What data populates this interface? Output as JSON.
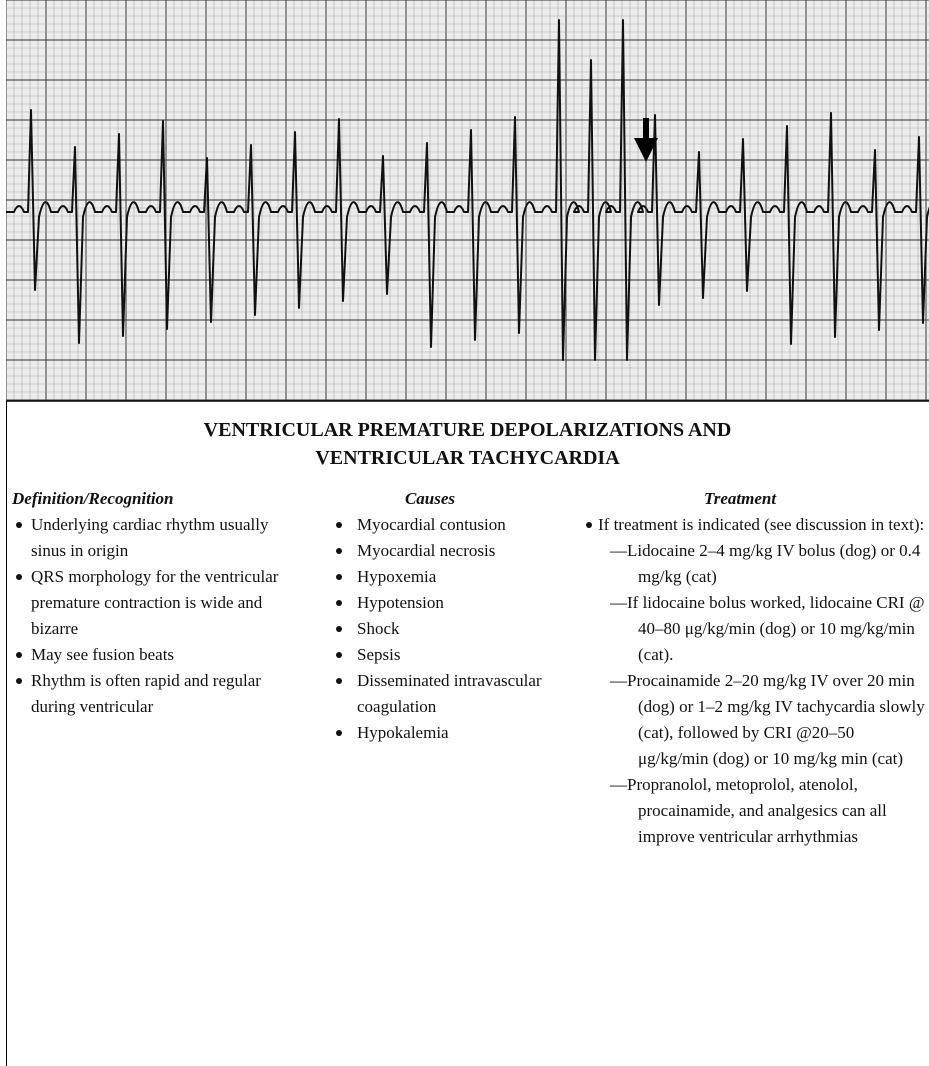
{
  "title": [
    "VENTRICULAR PREMATURE DEPOLARIZATIONS AND",
    "VENTRICULAR TACHYCARDIA"
  ],
  "columns": [
    {
      "heading": "Definition/Recognition",
      "items": [
        {
          "text": "Underlying cardiac rhythm usually sinus in origin"
        },
        {
          "text": "QRS morphology for the ventricular premature contraction is wide and bizarre"
        },
        {
          "text": "May see fusion beats"
        },
        {
          "text": "Rhythm is often rapid and regular during ventricular"
        }
      ]
    },
    {
      "heading": "Causes",
      "items": [
        {
          "text": "Myocardial contusion"
        },
        {
          "text": "Myocardial necrosis"
        },
        {
          "text": "Hypoxemia"
        },
        {
          "text": "Hypotension"
        },
        {
          "text": "Shock"
        },
        {
          "text": "Sepsis"
        },
        {
          "text": "Disseminated intravascular coagulation"
        },
        {
          "text": "Hypokalemia"
        }
      ]
    },
    {
      "heading": "Treatment",
      "items": [
        {
          "text": "If treatment is indicated (see discussion in text):",
          "subitems": [
            "—Lidocaine 2–4 mg/kg IV bolus (dog) or 0.4 mg/kg (cat)",
            "—If lidocaine bolus worked, lidocaine CRI @ 40–80 μg/kg/min (dog) or 10 mg/kg/min (cat).",
            "—Procainamide 2–20 mg/kg IV over 20 min (dog) or 1–2 mg/kg IV tachycardia slowly (cat), followed by CRI @20–50 μg/kg/min (dog) or 10 mg/kg min (cat)",
            "—Propranolol, metoprolol, atenolol, procainamide, and analgesics can all improve ventricular arrhythmias"
          ]
        }
      ]
    }
  ]
}
